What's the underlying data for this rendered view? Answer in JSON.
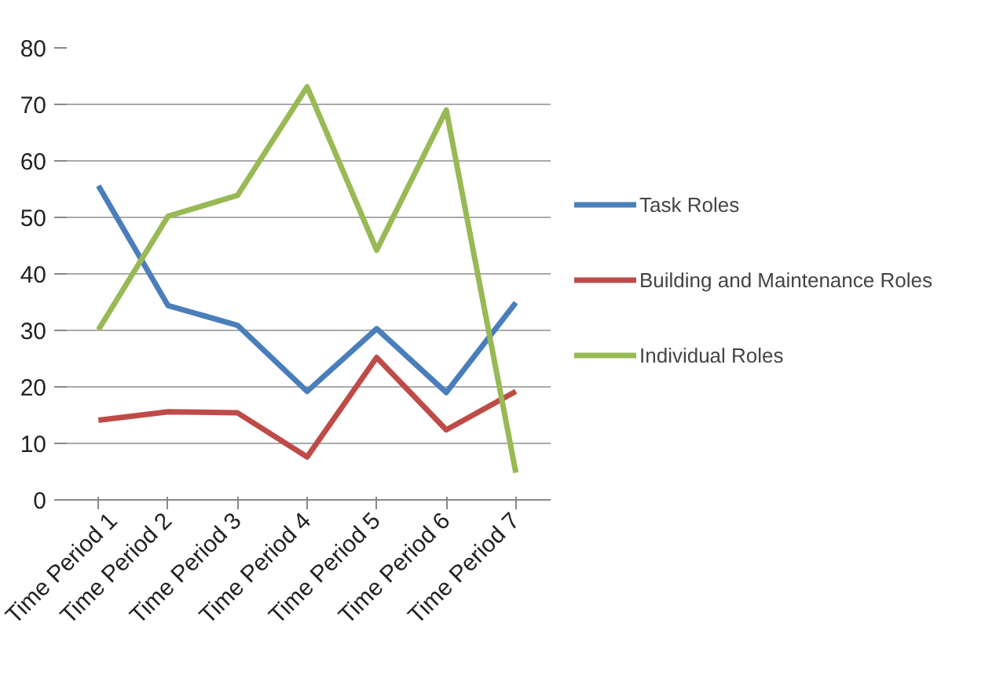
{
  "chart_data": {
    "type": "line",
    "categories": [
      "Time Period 1",
      "Time Period 2",
      "Time Period 3",
      "Time Period 4",
      "Time Period 5",
      "Time Period 6",
      "Time Period 7"
    ],
    "series": [
      {
        "name": "Task Roles",
        "color": "#4a7ebb",
        "values": [
          55.6,
          34.4,
          30.9,
          19.2,
          30.3,
          19.0,
          34.9
        ]
      },
      {
        "name": "Building and Maintenance Roles",
        "color": "#be4b48",
        "values": [
          14.1,
          15.6,
          15.4,
          7.6,
          25.2,
          12.4,
          19.2
        ]
      },
      {
        "name": "Individual Roles",
        "color": "#98b954",
        "values": [
          30.1,
          50.2,
          53.9,
          73.1,
          44.2,
          69.0,
          4.8
        ]
      }
    ],
    "ylim": [
      0,
      80
    ],
    "yticks": [
      0,
      10,
      20,
      30,
      40,
      50,
      60,
      70,
      80
    ],
    "grid": "y",
    "legend": "right",
    "marker": "none",
    "line_style": "solid"
  }
}
